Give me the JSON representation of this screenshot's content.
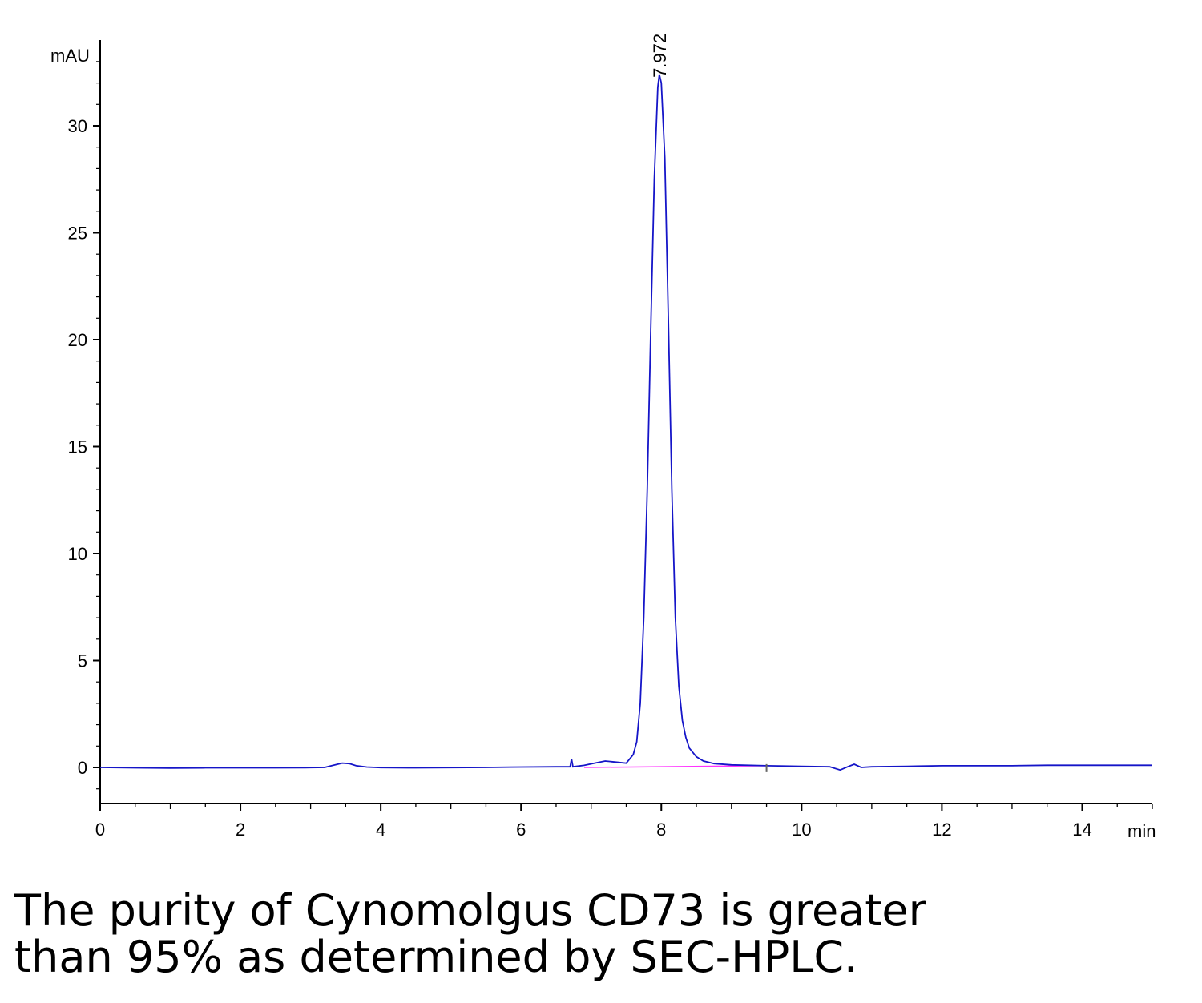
{
  "chart_data": {
    "type": "line",
    "ylabel": "mAU",
    "xlabel": "min",
    "xlim": [
      0,
      15
    ],
    "ylim": [
      -1.7,
      34
    ],
    "x_ticks": [
      0,
      2,
      4,
      6,
      8,
      10,
      12,
      14
    ],
    "y_ticks": [
      0,
      5,
      10,
      15,
      20,
      25,
      30
    ],
    "grid": false,
    "colors": {
      "trace": "#1515c8",
      "baseline": "#ff33ff",
      "axis": "#000000"
    },
    "peaks": [
      {
        "retention_time": 7.972,
        "label": "7.972",
        "height": 32.4
      }
    ],
    "series": [
      {
        "x": [
          0,
          0.5,
          1,
          1.5,
          2,
          2.5,
          3,
          3.2,
          3.35,
          3.45,
          3.55,
          3.65,
          3.8,
          4,
          4.5,
          5,
          5.5,
          6,
          6.5,
          6.7,
          6.72,
          6.74,
          6.9,
          7.05,
          7.2,
          7.35,
          7.5,
          7.6,
          7.65,
          7.7,
          7.75,
          7.8,
          7.85,
          7.9,
          7.95,
          7.972,
          8.0,
          8.05,
          8.1,
          8.15,
          8.2,
          8.25,
          8.3,
          8.35,
          8.4,
          8.5,
          8.6,
          8.75,
          9,
          9.5,
          10,
          10.4,
          10.55,
          10.65,
          10.75,
          10.85,
          11,
          11.5,
          12,
          12.5,
          13,
          13.5,
          14,
          14.5,
          15
        ],
        "y": [
          0,
          -0.02,
          -0.03,
          -0.02,
          -0.02,
          -0.02,
          -0.01,
          0.0,
          0.12,
          0.2,
          0.18,
          0.08,
          0.02,
          -0.01,
          -0.02,
          -0.01,
          0.0,
          0.02,
          0.03,
          0.03,
          0.4,
          0.03,
          0.1,
          0.2,
          0.3,
          0.25,
          0.2,
          0.6,
          1.2,
          3.0,
          7.0,
          13.0,
          20.5,
          27.5,
          31.8,
          32.4,
          32.0,
          28.5,
          21.0,
          13.0,
          7.0,
          3.8,
          2.2,
          1.4,
          0.9,
          0.5,
          0.3,
          0.18,
          0.12,
          0.08,
          0.05,
          0.03,
          -0.12,
          0.02,
          0.15,
          0.0,
          0.03,
          0.05,
          0.08,
          0.08,
          0.08,
          0.1,
          0.1,
          0.1,
          0.1
        ]
      }
    ],
    "baseline_segment": {
      "x": [
        6.9,
        9.5
      ],
      "y": [
        0.0,
        0.08
      ]
    }
  },
  "caption": {
    "line1": "The purity of Cynomolgus CD73 is greater",
    "line2": "than 95% as determined by SEC-HPLC."
  }
}
